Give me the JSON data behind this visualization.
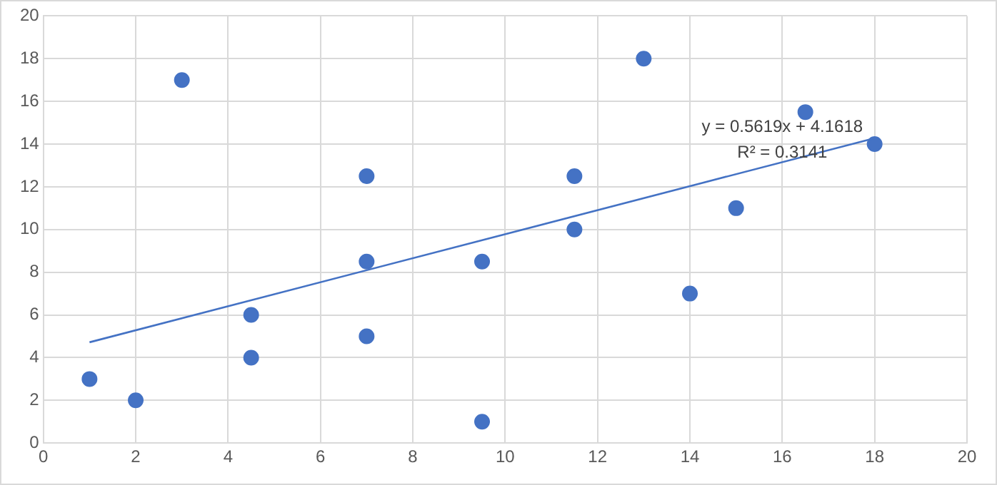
{
  "chart_data": {
    "type": "scatter",
    "x": [
      1,
      2,
      3,
      4.5,
      4.5,
      7,
      7,
      7,
      9.5,
      9.5,
      11.5,
      11.5,
      13,
      14,
      15,
      16.5,
      18
    ],
    "series": [
      {
        "marker": "circle",
        "color": "#4472c4",
        "values": [
          3,
          2,
          17,
          6,
          4,
          12.5,
          8.5,
          5,
          8.5,
          1,
          12.5,
          10,
          18,
          7,
          11,
          15.5,
          14
        ]
      },
      {
        "type": "line",
        "color": "#4472c4",
        "x": [
          1,
          18
        ],
        "values": [
          4.72,
          14.28
        ]
      }
    ],
    "xlim": [
      0,
      20
    ],
    "xticks": [
      0,
      2,
      4,
      6,
      8,
      10,
      12,
      14,
      16,
      18,
      20
    ],
    "ylim": [
      0,
      20
    ],
    "yticks": [
      0,
      2,
      4,
      6,
      8,
      10,
      12,
      14,
      16,
      18,
      20
    ],
    "grid": true,
    "legend": false,
    "annotations": [
      "y = 0.5619x + 4.1618",
      "R² = 0.3141"
    ]
  }
}
